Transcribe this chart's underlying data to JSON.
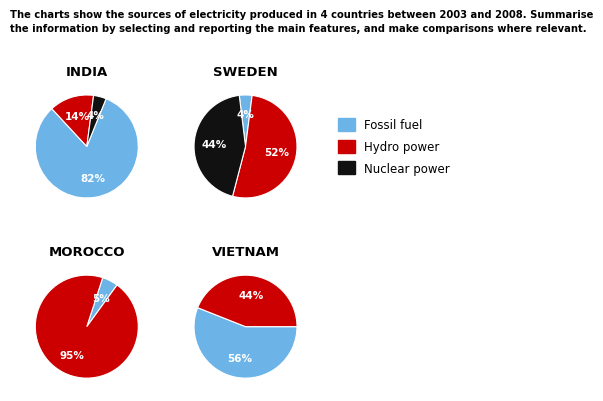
{
  "title_line1": "The charts show the sources of electricity produced in 4 countries between 2003 and 2008. Summarise",
  "title_line2": "the information by selecting and reporting the main features, and make comparisons where relevant.",
  "countries": [
    "INDIA",
    "SWEDEN",
    "MOROCCO",
    "VIETNAM"
  ],
  "colors": {
    "fossil_fuel": "#6CB4E8",
    "hydro_power": "#CC0000",
    "nuclear_power": "#111111"
  },
  "legend_labels": [
    "Fossil fuel",
    "Hydro power",
    "Nuclear power"
  ],
  "india": [
    82,
    14,
    4
  ],
  "sweden": [
    4,
    52,
    44
  ],
  "morocco": [
    5,
    95,
    0
  ],
  "vietnam": [
    56,
    44,
    0
  ],
  "background_color": "#FFFFFF",
  "startangles": {
    "INDIA": 68,
    "SWEDEN": 97,
    "MOROCCO": 72,
    "VIETNAM": 0
  }
}
